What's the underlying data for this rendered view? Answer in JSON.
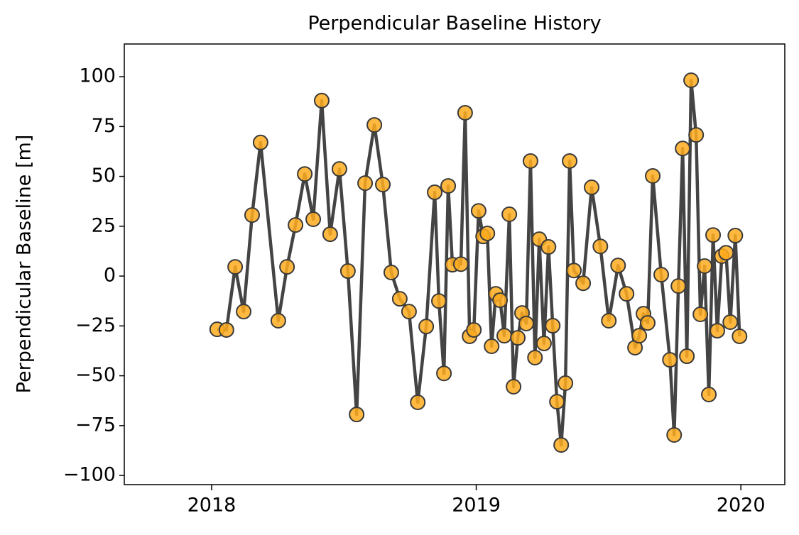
{
  "chart_data": {
    "type": "line",
    "title": "Perpendicular Baseline History",
    "ylabel": "Perpendicular Baseline [m]",
    "x": [
      2018.021,
      2018.056,
      2018.089,
      2018.121,
      2018.153,
      2018.185,
      2018.252,
      2018.285,
      2018.317,
      2018.352,
      2018.384,
      2018.416,
      2018.448,
      2018.483,
      2018.515,
      2018.548,
      2018.58,
      2018.615,
      2018.647,
      2018.679,
      2018.711,
      2018.746,
      2018.779,
      2018.811,
      2018.843,
      2018.859,
      2018.878,
      2018.894,
      2018.91,
      2018.942,
      2018.958,
      2018.975,
      2018.991,
      2019.009,
      2019.026,
      2019.042,
      2019.058,
      2019.074,
      2019.09,
      2019.106,
      2019.125,
      2019.141,
      2019.157,
      2019.173,
      2019.189,
      2019.205,
      2019.222,
      2019.238,
      2019.256,
      2019.273,
      2019.289,
      2019.305,
      2019.321,
      2019.337,
      2019.353,
      2019.369,
      2019.404,
      2019.436,
      2019.469,
      2019.501,
      2019.536,
      2019.568,
      2019.6,
      2019.616,
      2019.632,
      2019.648,
      2019.667,
      2019.699,
      2019.732,
      2019.748,
      2019.764,
      2019.78,
      2019.796,
      2019.812,
      2019.831,
      2019.847,
      2019.863,
      2019.879,
      2019.895,
      2019.911,
      2019.928,
      2019.944,
      2019.96,
      2019.979,
      2019.995
    ],
    "values": [
      -26.7,
      -27,
      4.6,
      -17.8,
      30.6,
      67,
      -22.4,
      4.6,
      25.6,
      51.2,
      28.5,
      88,
      21,
      53.7,
      2.5,
      -69.4,
      46.6,
      75.8,
      45.9,
      1.8,
      -11.4,
      -17.8,
      -63.3,
      -25.3,
      42,
      -12.5,
      -48.8,
      45.2,
      5.7,
      6,
      81.9,
      -30.2,
      -27,
      32.7,
      19.9,
      21.4,
      -35.2,
      -8.9,
      -12.1,
      -29.9,
      31,
      -55.5,
      -31,
      -18.5,
      -23.8,
      57.7,
      -40.9,
      18.5,
      -33.8,
      14.6,
      -24.9,
      -63,
      -84.7,
      -53.7,
      57.7,
      2.8,
      -3.6,
      44.5,
      14.9,
      -22.4,
      5.3,
      -8.9,
      -35.9,
      -29.9,
      -18.9,
      -23.5,
      50.2,
      0.7,
      -42,
      -79.7,
      -5,
      64,
      -40.2,
      98.2,
      70.8,
      -19.2,
      5,
      -59.4,
      20.6,
      -27.4,
      10,
      11.7,
      -23.1,
      20.3,
      -30.2
    ],
    "color": "#444444",
    "marker_color": "#ffad1f",
    "xlim": [
      2017.67,
      2020.166
    ],
    "xticks": [
      2018,
      2019,
      2020
    ],
    "ylim": [
      -104.6,
      116.4
    ],
    "yticks": [
      {
        "value": -100,
        "label": "−100"
      },
      {
        "value": -75,
        "label": "−75"
      },
      {
        "value": -50,
        "label": "−50"
      },
      {
        "value": -25,
        "label": "−25"
      },
      0,
      25,
      50,
      75,
      100
    ],
    "grid": false
  }
}
